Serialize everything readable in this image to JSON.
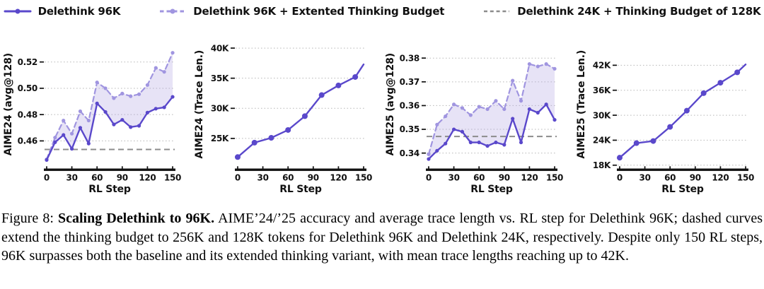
{
  "figure": {
    "caption": {
      "label": "Figure 8:",
      "title": "Scaling Delethink to 96K.",
      "body": "AIME’24/’25 accuracy and average trace length vs. RL step for Delethink 96K; dashed curves extend the thinking budget to 256K and 128K tokens for Delethink 96K and Delethink 24K, respectively. Despite only 150 RL steps, 96K surpasses both the baseline and its extended thinking variant, with mean trace lengths reaching up to 42K."
    }
  },
  "legend": {
    "items": [
      {
        "label": "Delethink 96K",
        "style": "solid-line-with-marker",
        "color": "#5a48cb"
      },
      {
        "label": "Delethink 96K + Extented Thinking Budget",
        "style": "dashed-line-with-marker",
        "color": "#a095e0"
      },
      {
        "label": "Delethink 24K + Thinking Budget of 128K",
        "style": "dashed-line",
        "color": "#8c8c8c"
      }
    ]
  },
  "colors": {
    "solid_series": "#5a48cb",
    "dashed_series": "#a095e0",
    "baseline": "#8c8c8c",
    "fill_between": "#b5a8e4",
    "grid": "#b9b9b9",
    "axis": "#111111"
  },
  "chart_data": [
    {
      "type": "line",
      "name": "aime24-accuracy",
      "ylabel": "AIME24 (avg@128)",
      "xlabel": "RL Step",
      "x": [
        0,
        10,
        20,
        30,
        40,
        50,
        60,
        70,
        80,
        90,
        100,
        110,
        120,
        130,
        140,
        150
      ],
      "series": [
        {
          "name": "Delethink 96K",
          "color": "#5a48cb",
          "dashed": false,
          "values": [
            0.4455,
            0.459,
            0.4645,
            0.454,
            0.47,
            0.458,
            0.4885,
            0.482,
            0.4725,
            0.476,
            0.4705,
            0.4715,
            0.4815,
            0.4845,
            0.4855,
            0.4935
          ]
        },
        {
          "name": "Delethink 96K + Extented Thinking Budget",
          "color": "#a095e0",
          "dashed": true,
          "values": [
            0.446,
            0.4625,
            0.4755,
            0.4655,
            0.4825,
            0.4755,
            0.5045,
            0.5,
            0.4925,
            0.496,
            0.494,
            0.4955,
            0.5025,
            0.5155,
            0.5125,
            0.527
          ]
        }
      ],
      "baseline": {
        "name": "Delethink 24K + Thinking Budget of 128K",
        "value": 0.4535
      },
      "fill_between": true,
      "grid": true,
      "xticks": [
        0,
        30,
        60,
        90,
        120,
        150
      ],
      "xlim": [
        -2.5,
        152.5
      ],
      "ytick_values": [
        0.46,
        0.48,
        0.5,
        0.52
      ],
      "ytick_labels": [
        "0.46",
        "0.48",
        "0.50",
        "0.52"
      ],
      "ylim": [
        0.439,
        0.5365
      ],
      "marker_radius": 2.6,
      "marker_on_last_point": true
    },
    {
      "type": "line",
      "name": "aime24-trace-length",
      "ylabel": "AIME24 (Trace Len.)",
      "xlabel": "RL Step",
      "x": [
        0,
        20,
        40,
        60,
        80,
        100,
        120,
        140,
        150
      ],
      "series": [
        {
          "name": "Delethink 96K",
          "color": "#5a48cb",
          "dashed": false,
          "values": [
            21.9,
            24.3,
            25.1,
            26.4,
            28.7,
            32.2,
            33.8,
            35.2,
            37.3
          ]
        }
      ],
      "fill_between": false,
      "grid": true,
      "xticks": [
        0,
        30,
        60,
        90,
        120,
        150
      ],
      "xlim": [
        -2.5,
        152.5
      ],
      "ytick_values": [
        25,
        30,
        35,
        40
      ],
      "ytick_labels": [
        "25K",
        "30K",
        "35K",
        "40K"
      ],
      "ylim": [
        20.0,
        41.3
      ],
      "marker_radius": 4,
      "marker_on_last_point": false
    },
    {
      "type": "line",
      "name": "aime25-accuracy",
      "ylabel": "AIME25 (avg@128)",
      "xlabel": "RL Step",
      "x": [
        0,
        10,
        20,
        30,
        40,
        50,
        60,
        70,
        80,
        90,
        100,
        110,
        120,
        130,
        140,
        150
      ],
      "series": [
        {
          "name": "Delethink 96K",
          "color": "#5a48cb",
          "dashed": false,
          "values": [
            0.3375,
            0.341,
            0.344,
            0.35,
            0.349,
            0.3445,
            0.3445,
            0.343,
            0.3445,
            0.3435,
            0.3545,
            0.3445,
            0.3585,
            0.357,
            0.3605,
            0.354
          ]
        },
        {
          "name": "Delethink 96K + Extented Thinking Budget",
          "color": "#a095e0",
          "dashed": true,
          "values": [
            0.3395,
            0.352,
            0.3555,
            0.3605,
            0.359,
            0.356,
            0.3595,
            0.3585,
            0.362,
            0.3585,
            0.3705,
            0.362,
            0.3775,
            0.3765,
            0.3775,
            0.3755
          ]
        }
      ],
      "baseline": {
        "name": "Delethink 24K + Thinking Budget of 128K",
        "value": 0.347
      },
      "fill_between": true,
      "grid": true,
      "xticks": [
        0,
        30,
        60,
        90,
        120,
        150
      ],
      "xlim": [
        -2.5,
        152.5
      ],
      "ytick_values": [
        0.34,
        0.35,
        0.36,
        0.37,
        0.38
      ],
      "ytick_labels": [
        "0.34",
        "0.35",
        "0.36",
        "0.37",
        "0.38"
      ],
      "ylim": [
        0.3335,
        0.3875
      ],
      "marker_radius": 2.6,
      "marker_on_last_point": true
    },
    {
      "type": "line",
      "name": "aime25-trace-length",
      "ylabel": "AIME25 (Trace Len.)",
      "xlabel": "RL Step",
      "x": [
        0,
        20,
        40,
        60,
        80,
        100,
        120,
        140,
        150
      ],
      "series": [
        {
          "name": "Delethink 96K",
          "color": "#5a48cb",
          "dashed": false,
          "values": [
            19.8,
            23.3,
            23.8,
            27.2,
            31.1,
            35.3,
            37.8,
            40.3,
            42.2
          ]
        }
      ],
      "fill_between": false,
      "grid": true,
      "xticks": [
        0,
        30,
        60,
        90,
        120,
        150
      ],
      "xlim": [
        -2.5,
        152.5
      ],
      "ytick_values": [
        18,
        24,
        30,
        36,
        42
      ],
      "ytick_labels": [
        "18K",
        "24K",
        "30K",
        "36K",
        "42K"
      ],
      "ylim": [
        17.2,
        48.0
      ],
      "marker_radius": 4,
      "marker_on_last_point": false
    }
  ]
}
